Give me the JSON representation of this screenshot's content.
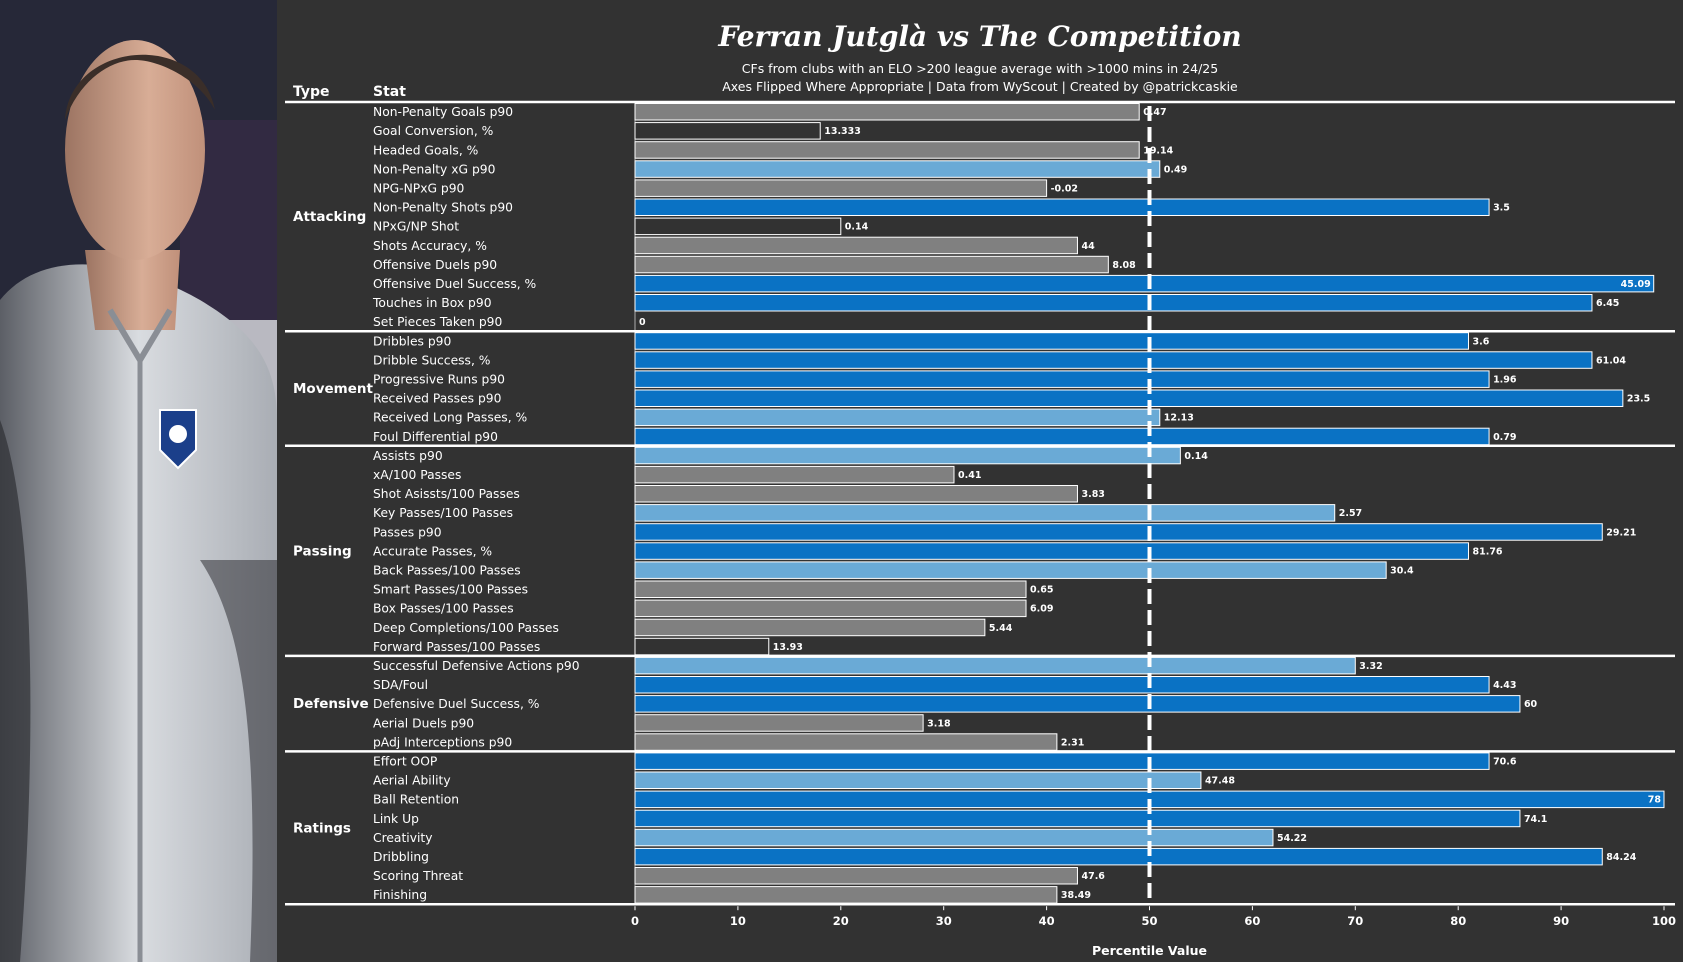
{
  "header": {
    "title": "Ferran Jutglà vs The Competition",
    "subtitle_line1": "CFs from clubs with an ELO >200 league average with >1000 mins in 24/25",
    "subtitle_line2": "Axes Flipped Where Appropriate | Data from WyScout | Created by @patrickcaskie",
    "type_header": "Type",
    "stat_header": "Stat"
  },
  "colors": {
    "background": "#323232",
    "below_average": "#808080",
    "near_average": "#6aaad6",
    "above_average": "#0a72c4",
    "low": "#323232",
    "text": "#ffffff"
  },
  "chart_data": {
    "type": "bar",
    "orientation": "horizontal",
    "xlabel": "Percentile Value",
    "xlim": [
      0,
      100
    ],
    "xticks": [
      0,
      10,
      20,
      30,
      40,
      50,
      60,
      70,
      80,
      90,
      100
    ],
    "reference_line": 50,
    "groups": [
      {
        "type": "Attacking",
        "stats": [
          {
            "stat": "Non-Penalty Goals p90",
            "percentile": 49,
            "value": "0.47",
            "tier": "below_average"
          },
          {
            "stat": "Goal Conversion, %",
            "percentile": 18,
            "value": "13.333",
            "tier": "low"
          },
          {
            "stat": "Headed Goals, %",
            "percentile": 49,
            "value": "19.14",
            "tier": "below_average"
          },
          {
            "stat": "Non-Penalty xG p90",
            "percentile": 51,
            "value": "0.49",
            "tier": "near_average"
          },
          {
            "stat": "NPG-NPxG p90",
            "percentile": 40,
            "value": "-0.02",
            "tier": "below_average"
          },
          {
            "stat": "Non-Penalty Shots p90",
            "percentile": 83,
            "value": "3.5",
            "tier": "above_average"
          },
          {
            "stat": "NPxG/NP Shot",
            "percentile": 20,
            "value": "0.14",
            "tier": "low"
          },
          {
            "stat": "Shots Accuracy, %",
            "percentile": 43,
            "value": "44",
            "tier": "below_average"
          },
          {
            "stat": "Offensive Duels p90",
            "percentile": 46,
            "value": "8.08",
            "tier": "below_average"
          },
          {
            "stat": "Offensive Duel Success, %",
            "percentile": 99,
            "value": "45.09",
            "tier": "above_average"
          },
          {
            "stat": "Touches in Box p90",
            "percentile": 93,
            "value": "6.45",
            "tier": "above_average"
          },
          {
            "stat": "Set Pieces Taken p90",
            "percentile": 0,
            "value": "0",
            "tier": "low"
          }
        ]
      },
      {
        "type": "Movement",
        "stats": [
          {
            "stat": "Dribbles p90",
            "percentile": 81,
            "value": "3.6",
            "tier": "above_average"
          },
          {
            "stat": "Dribble Success, %",
            "percentile": 93,
            "value": "61.04",
            "tier": "above_average"
          },
          {
            "stat": "Progressive Runs p90",
            "percentile": 83,
            "value": "1.96",
            "tier": "above_average"
          },
          {
            "stat": "Received Passes p90",
            "percentile": 96,
            "value": "23.5",
            "tier": "above_average"
          },
          {
            "stat": "Received Long Passes, %",
            "percentile": 51,
            "value": "12.13",
            "tier": "near_average"
          },
          {
            "stat": "Foul Differential p90",
            "percentile": 83,
            "value": "0.79",
            "tier": "above_average"
          }
        ]
      },
      {
        "type": "Passing",
        "stats": [
          {
            "stat": "Assists p90",
            "percentile": 53,
            "value": "0.14",
            "tier": "near_average"
          },
          {
            "stat": "xA/100 Passes",
            "percentile": 31,
            "value": "0.41",
            "tier": "below_average"
          },
          {
            "stat": "Shot Asissts/100 Passes",
            "percentile": 43,
            "value": "3.83",
            "tier": "below_average"
          },
          {
            "stat": "Key Passes/100 Passes",
            "percentile": 68,
            "value": "2.57",
            "tier": "near_average"
          },
          {
            "stat": "Passes p90",
            "percentile": 94,
            "value": "29.21",
            "tier": "above_average"
          },
          {
            "stat": "Accurate Passes, %",
            "percentile": 81,
            "value": "81.76",
            "tier": "above_average"
          },
          {
            "stat": "Back Passes/100 Passes",
            "percentile": 73,
            "value": "30.4",
            "tier": "near_average"
          },
          {
            "stat": "Smart Passes/100 Passes",
            "percentile": 38,
            "value": "0.65",
            "tier": "below_average"
          },
          {
            "stat": "Box Passes/100 Passes",
            "percentile": 38,
            "value": "6.09",
            "tier": "below_average"
          },
          {
            "stat": "Deep Completions/100 Passes",
            "percentile": 34,
            "value": "5.44",
            "tier": "below_average"
          },
          {
            "stat": "Forward Passes/100 Passes",
            "percentile": 13,
            "value": "13.93",
            "tier": "low"
          }
        ]
      },
      {
        "type": "Defensive",
        "stats": [
          {
            "stat": "Successful Defensive Actions p90",
            "percentile": 70,
            "value": "3.32",
            "tier": "near_average"
          },
          {
            "stat": "SDA/Foul",
            "percentile": 83,
            "value": "4.43",
            "tier": "above_average"
          },
          {
            "stat": "Defensive Duel Success, %",
            "percentile": 86,
            "value": "60",
            "tier": "above_average"
          },
          {
            "stat": "Aerial Duels p90",
            "percentile": 28,
            "value": "3.18",
            "tier": "below_average"
          },
          {
            "stat": "pAdj Interceptions p90",
            "percentile": 41,
            "value": "2.31",
            "tier": "below_average"
          }
        ]
      },
      {
        "type": "Ratings",
        "stats": [
          {
            "stat": "Effort OOP",
            "percentile": 83,
            "value": "70.6",
            "tier": "above_average"
          },
          {
            "stat": "Aerial Ability",
            "percentile": 55,
            "value": "47.48",
            "tier": "near_average"
          },
          {
            "stat": "Ball Retention",
            "percentile": 100,
            "value": "78",
            "tier": "above_average"
          },
          {
            "stat": "Link Up",
            "percentile": 86,
            "value": "74.1",
            "tier": "above_average"
          },
          {
            "stat": "Creativity",
            "percentile": 62,
            "value": "54.22",
            "tier": "near_average"
          },
          {
            "stat": "Dribbling",
            "percentile": 94,
            "value": "84.24",
            "tier": "above_average"
          },
          {
            "stat": "Scoring Threat",
            "percentile": 43,
            "value": "47.6",
            "tier": "below_average"
          },
          {
            "stat": "Finishing",
            "percentile": 41,
            "value": "38.49",
            "tier": "below_average"
          }
        ]
      }
    ]
  }
}
